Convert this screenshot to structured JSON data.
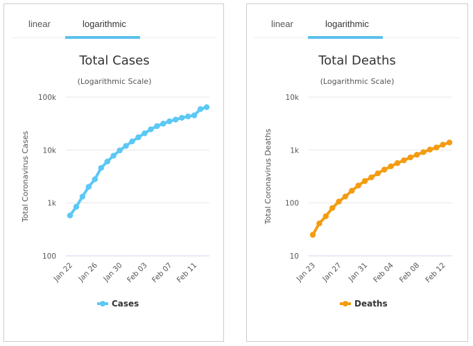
{
  "panels": [
    {
      "tabs": [
        {
          "label": "linear",
          "active": false
        },
        {
          "label": "logarithmic",
          "active": true
        }
      ],
      "color": "#5bc8f5"
    },
    {
      "tabs": [
        {
          "label": "linear",
          "active": false
        },
        {
          "label": "logarithmic",
          "active": true
        }
      ],
      "color": "#f39c12"
    }
  ],
  "chart_data": [
    {
      "type": "line",
      "title": "Total Cases",
      "subtitle": "(Logarithmic Scale)",
      "xlabel": "",
      "ylabel": "Total Coronavirus Cases",
      "yscale": "log",
      "ylim": [
        100,
        100000
      ],
      "yticks": [
        100,
        1000,
        10000,
        100000
      ],
      "ytick_labels": [
        "100",
        "1k",
        "10k",
        "100k"
      ],
      "grid": true,
      "legend": "bottom-center",
      "x": [
        "Jan 22",
        "Jan 23",
        "Jan 24",
        "Jan 25",
        "Jan 26",
        "Jan 27",
        "Jan 28",
        "Jan 29",
        "Jan 30",
        "Jan 31",
        "Feb 01",
        "Feb 02",
        "Feb 03",
        "Feb 04",
        "Feb 05",
        "Feb 06",
        "Feb 07",
        "Feb 08",
        "Feb 09",
        "Feb 10",
        "Feb 11",
        "Feb 12",
        "Feb 13"
      ],
      "xtick_labels": [
        "Jan 22",
        "Jan 26",
        "Jan 30",
        "Feb 03",
        "Feb 07",
        "Feb 11"
      ],
      "xtick_every": 4,
      "series": [
        {
          "name": "Cases",
          "color": "#5bc8f5",
          "values": [
            580,
            845,
            1317,
            2015,
            2800,
            4581,
            6058,
            7813,
            9823,
            11950,
            14553,
            17391,
            20630,
            24545,
            28266,
            31439,
            34876,
            37552,
            40553,
            43099,
            45134,
            59287,
            64438
          ]
        }
      ]
    },
    {
      "type": "line",
      "title": "Total Deaths",
      "subtitle": "(Logarithmic Scale)",
      "xlabel": "",
      "ylabel": "Total Coronavirus Deaths",
      "yscale": "log",
      "ylim": [
        10,
        10000
      ],
      "yticks": [
        10,
        100,
        1000,
        10000
      ],
      "ytick_labels": [
        "10",
        "100",
        "1k",
        "10k"
      ],
      "grid": true,
      "legend": "bottom-center",
      "x": [
        "Jan 23",
        "Jan 24",
        "Jan 25",
        "Jan 26",
        "Jan 27",
        "Jan 28",
        "Jan 29",
        "Jan 30",
        "Jan 31",
        "Feb 01",
        "Feb 02",
        "Feb 03",
        "Feb 04",
        "Feb 05",
        "Feb 06",
        "Feb 07",
        "Feb 08",
        "Feb 09",
        "Feb 10",
        "Feb 11",
        "Feb 12",
        "Feb 13"
      ],
      "xtick_labels": [
        "Jan 23",
        "Jan 27",
        "Jan 31",
        "Feb 04",
        "Feb 08",
        "Feb 12"
      ],
      "xtick_every": 4,
      "series": [
        {
          "name": "Deaths",
          "color": "#f39c12",
          "values": [
            25,
            41,
            56,
            80,
            106,
            132,
            170,
            213,
            259,
            304,
            362,
            426,
            492,
            565,
            638,
            724,
            813,
            910,
            1018,
            1115,
            1261,
            1383
          ]
        }
      ]
    }
  ]
}
